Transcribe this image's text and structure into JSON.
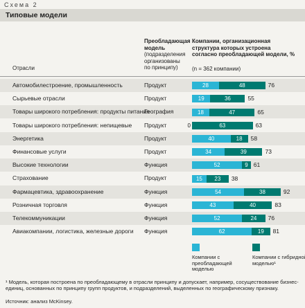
{
  "header": "Схема 2",
  "chart_data": {
    "type": "bar",
    "orientation": "horizontal",
    "stacked": true,
    "title": "Типовые модели",
    "category_header": "Отрасли",
    "model_header": "Преобладающая модель",
    "model_subheader": "(подразделения организованы по принципу)",
    "value_header": "Компании, организационная структура которых устроена согласно преобладающей модели, %",
    "value_subheader": "(n = 362 компании)",
    "categories": [
      "Автомобилестроение, промышленность",
      "Сырьевые отрасли",
      "Товары широкого потребления: продукты питания",
      "Товары широкого потребления: непищевые",
      "Энергетика",
      "Финансовые услуги",
      "Высокие технологии",
      "Страхование",
      "Фармацевтика, здравоохранение",
      "Розничная торговля",
      "Телекоммуникации",
      "Авиакомпании, логистика, железные дороги"
    ],
    "models": [
      "Продукт",
      "Продукт",
      "География",
      "Продукт",
      "Продукт",
      "Продукт",
      "Функция",
      "Продукт",
      "Функция",
      "Функция",
      "Функция",
      "Функция"
    ],
    "series": [
      {
        "name": "Компании с преобладающей моделью",
        "color": "#2bb5d5",
        "values": [
          28,
          19,
          18,
          0,
          40,
          34,
          52,
          15,
          54,
          43,
          52,
          62
        ]
      },
      {
        "name": "Компании с гибридной моделью¹",
        "color": "#007a70",
        "values": [
          48,
          36,
          47,
          63,
          18,
          39,
          9,
          23,
          38,
          40,
          24,
          19
        ]
      }
    ],
    "totals": [
      76,
      55,
      65,
      63,
      58,
      73,
      61,
      38,
      92,
      83,
      76,
      81
    ]
  },
  "footnote": "¹ Модель, которая построена по преобладающему в отрасли принципу и допускает, например, сосуществование бизнес-единиц, основанных по принципу групп продуктов, и подразделений, выделенных по географическому признаку.",
  "source": "Источник: анализ McKinsey."
}
